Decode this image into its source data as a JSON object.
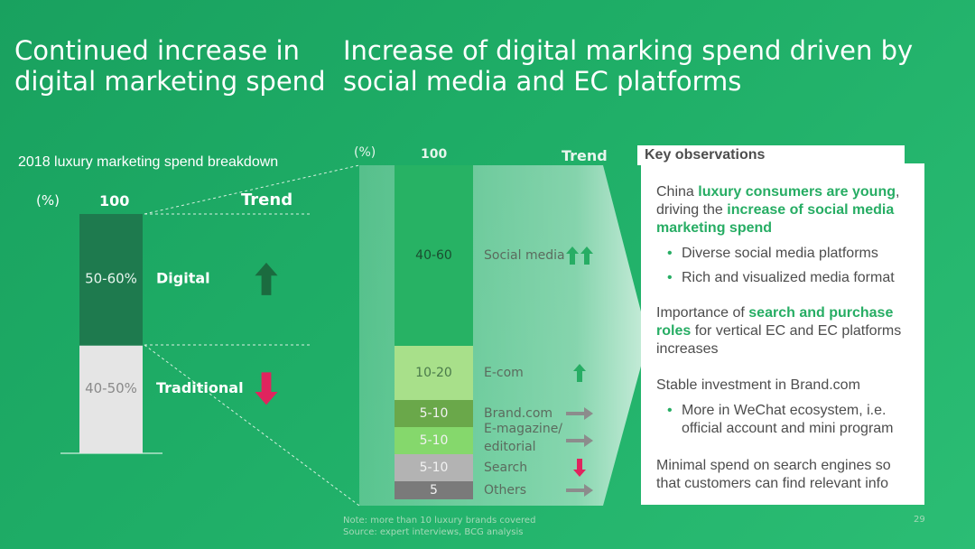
{
  "titles": {
    "left": "Continued increase in digital marketing spend",
    "right": "Increase of digital marking spend driven by social media and EC platforms"
  },
  "chart_data": [
    {
      "type": "bar",
      "title": "2018 luxury marketing spend breakdown",
      "unit_label": "(%)",
      "total_label": "100",
      "trend_label": "Trend",
      "segments": [
        {
          "name": "Digital",
          "label": "50-60%",
          "value_range": [
            50,
            60
          ],
          "trend": "up",
          "color": "#1e7a4e"
        },
        {
          "name": "Traditional",
          "label": "40-50%",
          "value_range": [
            40,
            50
          ],
          "trend": "down",
          "color": "#e5e5e5"
        }
      ]
    },
    {
      "type": "bar",
      "unit_label": "(%)",
      "total_label": "100",
      "trend_label": "Trend",
      "segments": [
        {
          "name": "Social media",
          "label": "40-60",
          "value_range": [
            40,
            60
          ],
          "trend": "double-up",
          "color": "#27b264"
        },
        {
          "name": "E-com",
          "label": "10-20",
          "value_range": [
            10,
            20
          ],
          "trend": "up",
          "color": "#a8e08a"
        },
        {
          "name": "Brand.com",
          "label": "5-10",
          "value_range": [
            5,
            10
          ],
          "trend": "flat",
          "color": "#6aa84a"
        },
        {
          "name": "E-magazine/ editorial",
          "label": "5-10",
          "value_range": [
            5,
            10
          ],
          "trend": "flat",
          "color": "#85d86c"
        },
        {
          "name": "Search",
          "label": "5-10",
          "value_range": [
            5,
            10
          ],
          "trend": "down",
          "color": "#b3b3b3"
        },
        {
          "name": "Others",
          "label": "5",
          "value_range": [
            5,
            5
          ],
          "trend": "flat",
          "color": "#7a7a7a"
        }
      ]
    }
  ],
  "key_observations": {
    "heading": "Key observations",
    "block1": {
      "pre": "China ",
      "hl1": "luxury consumers are young",
      "mid": ", driving the ",
      "hl2": "increase of social media marketing spend",
      "bullets": [
        "Diverse social media platforms",
        "Rich and visualized media format"
      ]
    },
    "block2": {
      "pre": "Importance of ",
      "hl": "search and purchase roles",
      "post": " for vertical EC and EC platforms increases"
    },
    "block3": {
      "text": "Stable investment in Brand.com",
      "bullets": [
        "More in WeChat ecosystem, i.e. official account and mini program"
      ]
    },
    "block4": {
      "text": "Minimal spend on search engines so that customers can find relevant info"
    }
  },
  "footnote": {
    "note": "Note: more than 10 luxury brands covered",
    "source": "Source: expert interviews, BCG analysis"
  },
  "page_number": "29",
  "colors": {
    "accent_green": "#27ad64",
    "up_arrow_dark": "#1b6b3f",
    "down_arrow": "#e0245e",
    "flat_arrow": "#8c8c8c"
  }
}
